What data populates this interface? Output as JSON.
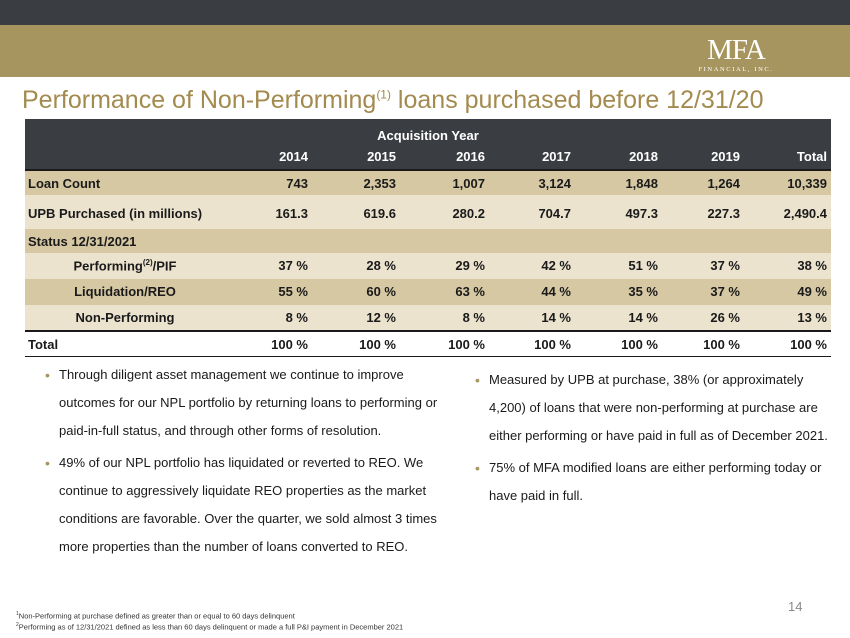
{
  "header": {
    "logo_main": "MFA",
    "logo_sub": "FINANCIAL, INC."
  },
  "title": {
    "main": "Performance of Non-Performing",
    "sup": "(1)",
    "rest": " loans purchased before 12/31/20"
  },
  "table": {
    "group_header": "Acquisition Year",
    "columns": [
      "2014",
      "2015",
      "2016",
      "2017",
      "2018",
      "2019",
      "Total"
    ],
    "rows": [
      {
        "label": "Loan Count",
        "values": [
          "743",
          "2,353",
          "1,007",
          "3,124",
          "1,848",
          "1,264",
          "10,339"
        ]
      },
      {
        "label": "UPB Purchased (in millions)",
        "values": [
          "161.3",
          "619.6",
          "280.2",
          "704.7",
          "497.3",
          "227.3",
          "2,490.4"
        ]
      },
      {
        "label": "Status 12/31/2021",
        "values": []
      },
      {
        "label": "Performing",
        "label_sup": "(2)",
        "label_suffix": "/PIF",
        "values": [
          "37 %",
          "28 %",
          "29 %",
          "42 %",
          "51 %",
          "37 %",
          "38 %"
        ]
      },
      {
        "label": "Liquidation/REO",
        "values": [
          "55 %",
          "60 %",
          "63 %",
          "44 %",
          "35 %",
          "37 %",
          "49 %"
        ]
      },
      {
        "label": "Non-Performing",
        "values": [
          "8 %",
          "12 %",
          "8 %",
          "14 %",
          "14 %",
          "26 %",
          "13 %"
        ]
      },
      {
        "label": "Total",
        "values": [
          "100 %",
          "100 %",
          "100 %",
          "100 %",
          "100 %",
          "100 %",
          "100 %"
        ]
      }
    ]
  },
  "bullets_left": [
    "Through diligent asset management we continue to improve outcomes for our NPL portfolio by returning loans to performing or paid-in-full status, and through other forms of resolution.",
    "49% of our NPL portfolio has liquidated or reverted to REO. We continue to aggressively liquidate REO properties as the market conditions are favorable.  Over the quarter, we sold almost 3 times more properties than the number of loans converted to REO."
  ],
  "bullets_right": [
    "Measured by UPB at purchase, 38% (or approximately 4,200) of loans that were non-performing at purchase are either performing or have paid in full as of December  2021.",
    "75% of MFA modified loans are either performing today or have paid in full."
  ],
  "page_number": "14",
  "footnotes": [
    {
      "sup": "1",
      "text": "Non-Performing at purchase defined as greater than or equal to 60 days delinquent"
    },
    {
      "sup": "2",
      "text": "Performing as of 12/31/2021 defined as less than 60 days delinquent or made a full P&I payment in December 2021"
    }
  ],
  "colors": {
    "dark_bar": "#3a3d42",
    "gold_bar": "#a7955f",
    "title": "#a38a4e",
    "row_gold": "#d6c8a3",
    "row_cream": "#ece3cf"
  }
}
